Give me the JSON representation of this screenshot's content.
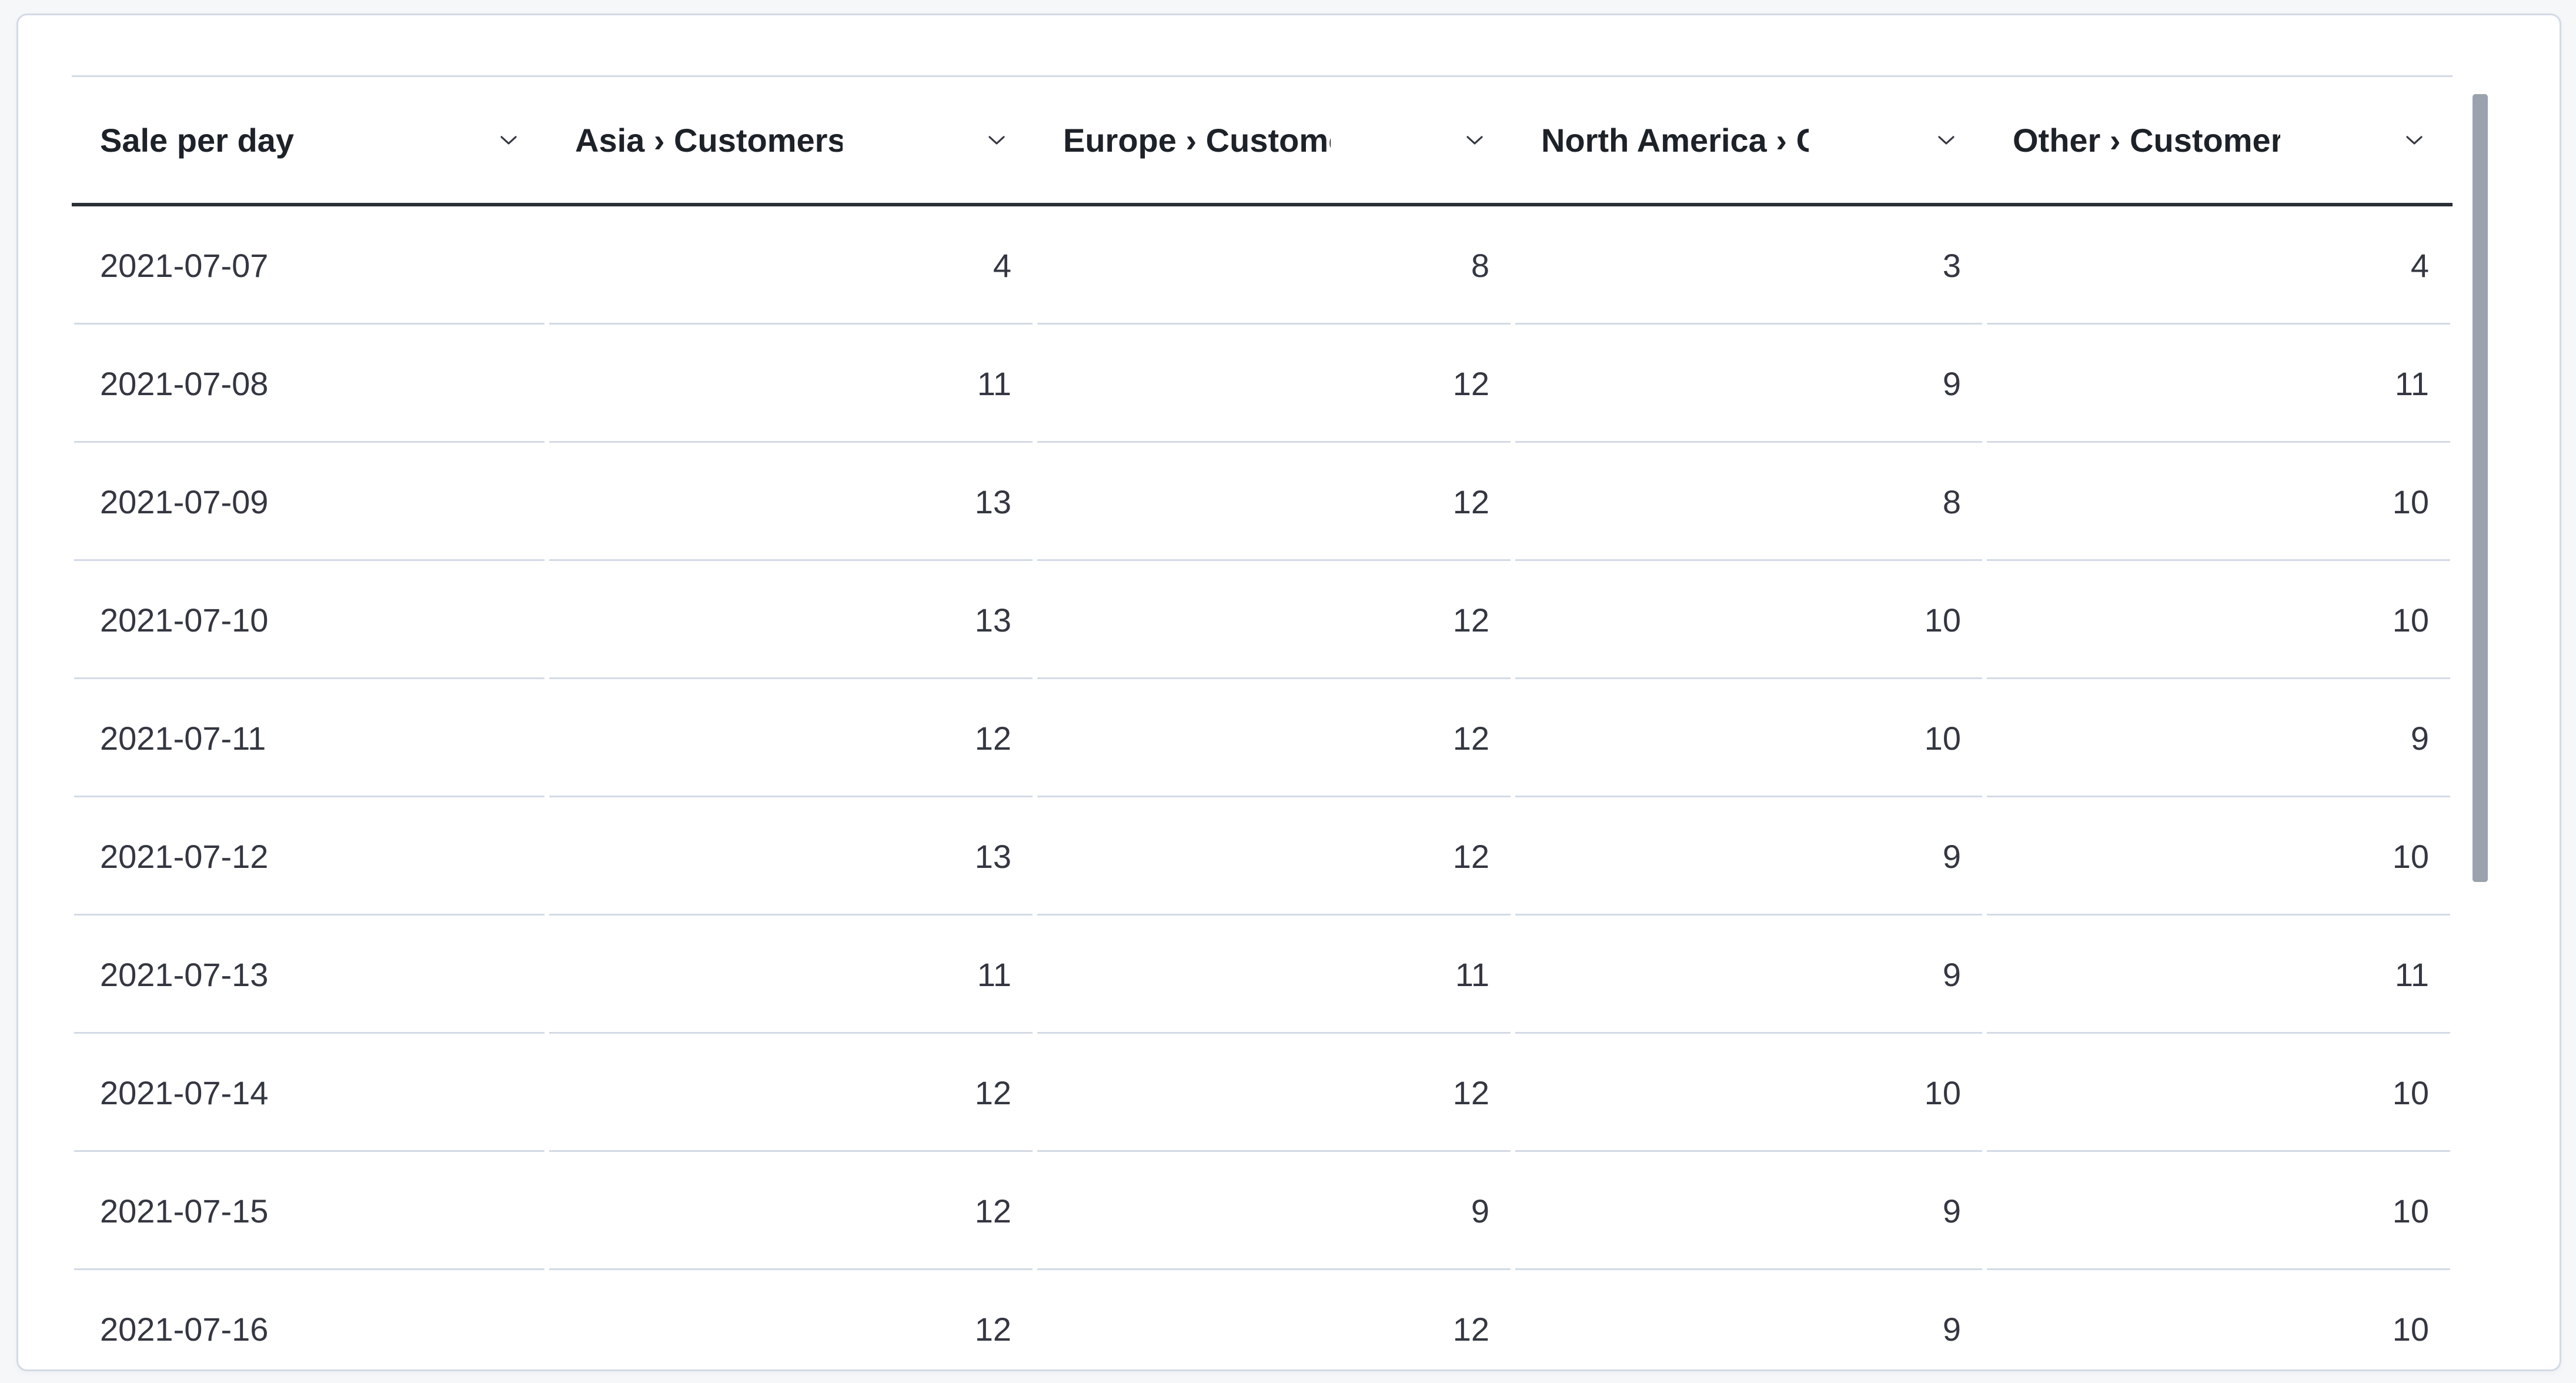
{
  "table": {
    "columns": [
      {
        "label": "Sale per day"
      },
      {
        "label": "Asia › Customers"
      },
      {
        "label": "Europe › Customers"
      },
      {
        "label": "North America › Customers"
      },
      {
        "label": "Other › Customers"
      }
    ],
    "rows": [
      {
        "date": "2021-07-07",
        "values": [
          4,
          8,
          3,
          4
        ]
      },
      {
        "date": "2021-07-08",
        "values": [
          11,
          12,
          9,
          11
        ]
      },
      {
        "date": "2021-07-09",
        "values": [
          13,
          12,
          8,
          10
        ]
      },
      {
        "date": "2021-07-10",
        "values": [
          13,
          12,
          10,
          10
        ]
      },
      {
        "date": "2021-07-11",
        "values": [
          12,
          12,
          10,
          9
        ]
      },
      {
        "date": "2021-07-12",
        "values": [
          13,
          12,
          9,
          10
        ]
      },
      {
        "date": "2021-07-13",
        "values": [
          11,
          11,
          9,
          11
        ]
      },
      {
        "date": "2021-07-14",
        "values": [
          12,
          12,
          10,
          10
        ]
      },
      {
        "date": "2021-07-15",
        "values": [
          12,
          9,
          9,
          10
        ]
      },
      {
        "date": "2021-07-16",
        "values": [
          12,
          12,
          9,
          10
        ]
      }
    ]
  },
  "chart_data": {
    "type": "table",
    "title": "Sale per day",
    "categories": [
      "2021-07-07",
      "2021-07-08",
      "2021-07-09",
      "2021-07-10",
      "2021-07-11",
      "2021-07-12",
      "2021-07-13",
      "2021-07-14",
      "2021-07-15",
      "2021-07-16"
    ],
    "series": [
      {
        "name": "Asia › Customers",
        "values": [
          4,
          11,
          13,
          13,
          12,
          13,
          11,
          12,
          12,
          12
        ]
      },
      {
        "name": "Europe › Customers",
        "values": [
          8,
          12,
          12,
          12,
          12,
          12,
          11,
          12,
          9,
          12
        ]
      },
      {
        "name": "North America › Customers",
        "values": [
          3,
          9,
          8,
          10,
          10,
          9,
          9,
          10,
          9,
          9
        ]
      },
      {
        "name": "Other › Customers",
        "values": [
          4,
          11,
          10,
          10,
          9,
          10,
          11,
          10,
          10,
          10
        ]
      }
    ]
  },
  "icons": {
    "chevron_down": "∨"
  },
  "colors": {
    "page_bg": "#f6f7f9",
    "card_bg": "#ffffff",
    "card_border": "#d3dae6",
    "row_border": "#d3dae6",
    "header_underline": "#2b2f36",
    "header_text": "#1d2128",
    "body_text": "#343741",
    "scrollbar_thumb": "#9aa2ad"
  }
}
